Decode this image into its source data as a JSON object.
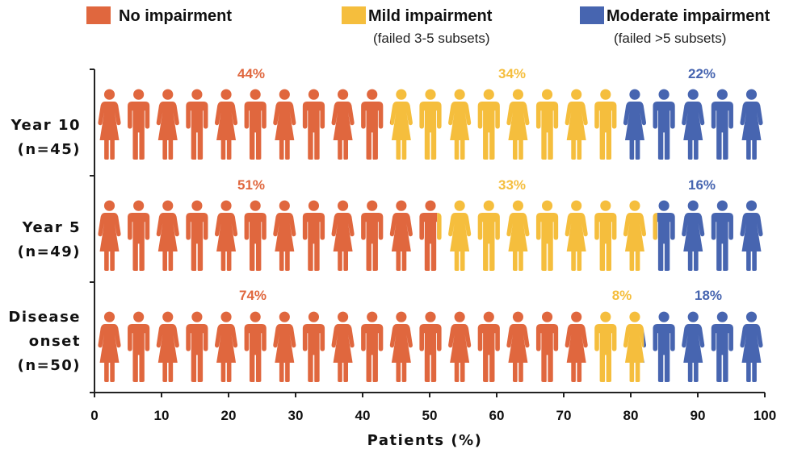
{
  "chart_data": {
    "type": "bar",
    "orientation": "horizontal",
    "stacked": true,
    "xlabel": "Patients (%)",
    "xlim": [
      0,
      100
    ],
    "xticks": [
      "0",
      "10",
      "20",
      "30",
      "40",
      "50",
      "60",
      "70",
      "80",
      "90",
      "100"
    ],
    "legend_placement": "top",
    "categories": [
      {
        "line1": "Year 10",
        "line2": "(n=45)"
      },
      {
        "line1": "Year 5",
        "line2": "(n=49)"
      },
      {
        "line1": "Disease",
        "line2": "onset",
        "line3": "(n=50)"
      }
    ],
    "series": [
      {
        "name": "No impairment",
        "sub": "",
        "color": "#E0673E",
        "values": [
          44,
          51,
          74
        ],
        "labels": [
          "44%",
          "51%",
          "74%"
        ]
      },
      {
        "name": "Mild impairment",
        "sub": "(failed 3-5 subsets)",
        "color": "#F5BE3D",
        "values": [
          34,
          33,
          8
        ],
        "labels": [
          "34%",
          "33%",
          "8%"
        ]
      },
      {
        "name": "Moderate impairment",
        "sub": "(failed >5 subsets)",
        "color": "#4765B0",
        "values": [
          22,
          16,
          18
        ],
        "labels": [
          "22%",
          "16%",
          "18%"
        ]
      }
    ],
    "grid": false,
    "mark_shape": "person-icon"
  }
}
